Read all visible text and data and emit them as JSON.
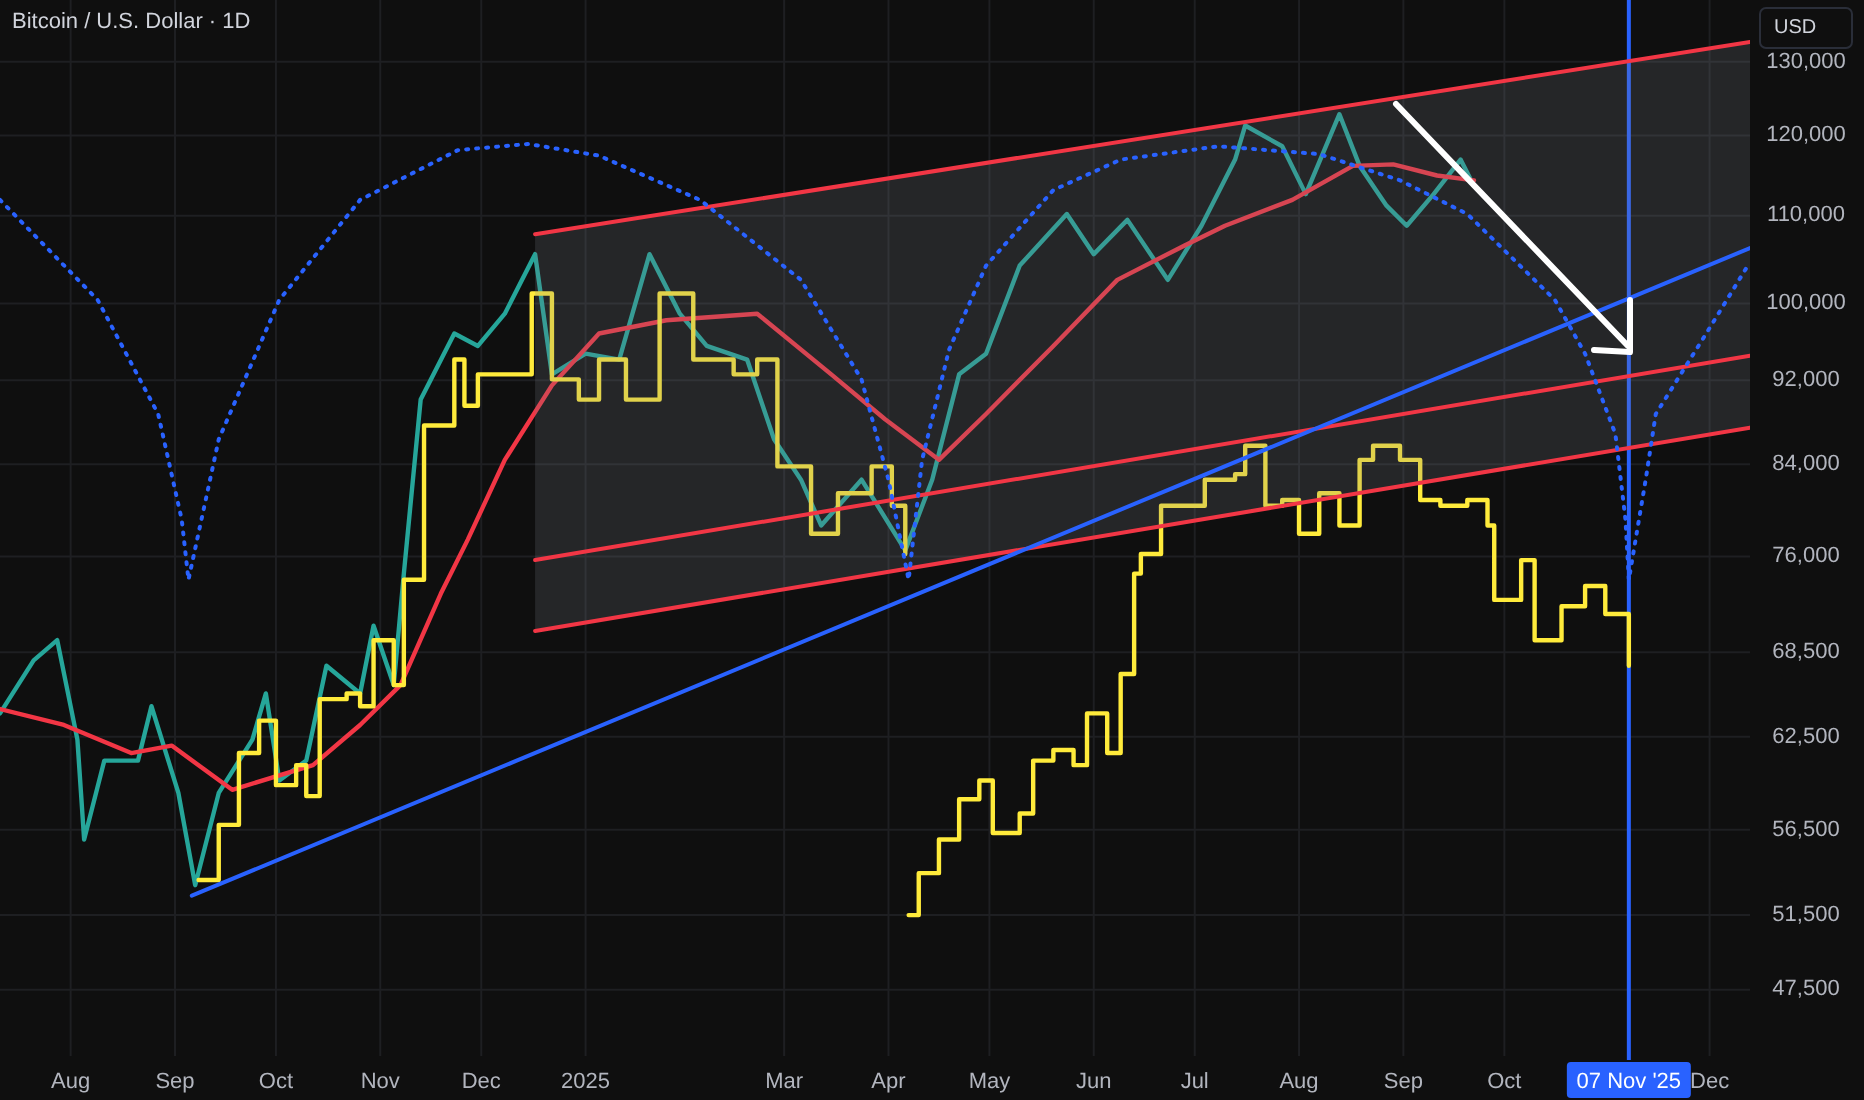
{
  "chart_data": {
    "type": "line",
    "title": "Bitcoin / U.S. Dollar · 1D",
    "ylabel": "USD",
    "log": true,
    "grid": true,
    "xlim": [
      "2024-07-11",
      "2025-12-13"
    ],
    "xticks": [
      {
        "value": "2024-08-01",
        "label": "Aug"
      },
      {
        "value": "2024-09-01",
        "label": "Sep"
      },
      {
        "value": "2024-10-01",
        "label": "Oct"
      },
      {
        "value": "2024-11-01",
        "label": "Nov"
      },
      {
        "value": "2024-12-01",
        "label": "Dec"
      },
      {
        "value": "2025-01-01",
        "label": "2025"
      },
      {
        "value": "2025-03-01",
        "label": "Mar"
      },
      {
        "value": "2025-04-01",
        "label": "Apr"
      },
      {
        "value": "2025-05-01",
        "label": "May"
      },
      {
        "value": "2025-06-01",
        "label": "Jun"
      },
      {
        "value": "2025-07-01",
        "label": "Jul"
      },
      {
        "value": "2025-08-01",
        "label": "Aug"
      },
      {
        "value": "2025-09-01",
        "label": "Sep"
      },
      {
        "value": "2025-10-01",
        "label": "Oct"
      },
      {
        "value": "2025-12-01",
        "label": "Dec"
      }
    ],
    "ylim": [
      44200,
      139000
    ],
    "yticks": [
      {
        "value": 47500,
        "label": "47,500"
      },
      {
        "value": 51500,
        "label": "51,500"
      },
      {
        "value": 56500,
        "label": "56,500"
      },
      {
        "value": 62500,
        "label": "62,500"
      },
      {
        "value": 68500,
        "label": "68,500"
      },
      {
        "value": 76000,
        "label": "76,000"
      },
      {
        "value": 84000,
        "label": "84,000"
      },
      {
        "value": 92000,
        "label": "92,000"
      },
      {
        "value": 100000,
        "label": "100,000"
      },
      {
        "value": 110000,
        "label": "110,000"
      },
      {
        "value": 120000,
        "label": "120,000"
      },
      {
        "value": 130000,
        "label": "130,000"
      }
    ],
    "ref_lines": [
      {
        "axis": "x",
        "value": "2025-11-07",
        "label": "07 Nov '25",
        "color": "#2962ff"
      }
    ],
    "series": [
      {
        "color": "#26a69a",
        "x": [
          "2024-07-11",
          "2024-07-21",
          "2024-07-28",
          "2024-08-03",
          "2024-08-05",
          "2024-08-11",
          "2024-08-21",
          "2024-08-25",
          "2024-09-02",
          "2024-09-07",
          "2024-09-14",
          "2024-09-24",
          "2024-09-28",
          "2024-10-02",
          "2024-10-10",
          "2024-10-16",
          "2024-10-26",
          "2024-10-30",
          "2024-11-05",
          "2024-11-08",
          "2024-11-13",
          "2024-11-23",
          "2024-11-30",
          "2024-12-08",
          "2024-12-17",
          "2024-12-22",
          "2025-01-01",
          "2025-01-11",
          "2025-01-20",
          "2025-01-29",
          "2025-02-06",
          "2025-02-18",
          "2025-02-26",
          "2025-03-06",
          "2025-03-12",
          "2025-03-24",
          "2025-04-06",
          "2025-04-14",
          "2025-04-22",
          "2025-04-30",
          "2025-05-10",
          "2025-05-24",
          "2025-06-01",
          "2025-06-11",
          "2025-06-23",
          "2025-07-03",
          "2025-07-13",
          "2025-07-16",
          "2025-07-27",
          "2025-08-03",
          "2025-08-13",
          "2025-08-19",
          "2025-08-27",
          "2025-09-02",
          "2025-09-10",
          "2025-09-18",
          "2025-09-22"
        ],
        "values": [
          64100,
          67900,
          69400,
          62300,
          55900,
          60900,
          60900,
          64600,
          58800,
          53200,
          58800,
          62300,
          65500,
          59600,
          60900,
          67500,
          65500,
          70500,
          66100,
          74600,
          90100,
          96800,
          95500,
          98900,
          105500,
          92600,
          94700,
          94100,
          105500,
          98900,
          95500,
          94100,
          86300,
          82600,
          78600,
          82600,
          76500,
          82600,
          92600,
          94700,
          104200,
          110200,
          105500,
          109500,
          102600,
          108800,
          116900,
          121300,
          118600,
          112600,
          122800,
          116100,
          111200,
          108800,
          112600,
          116900,
          113600
        ]
      },
      {
        "type": "line",
        "color": "#f23645",
        "x": [
          "2024-07-11",
          "2024-07-30",
          "2024-08-19",
          "2024-08-31",
          "2024-09-18",
          "2024-10-12",
          "2024-10-26",
          "2024-11-07",
          "2024-11-19",
          "2024-11-27",
          "2024-12-08",
          "2024-12-22",
          "2025-01-05",
          "2025-01-25",
          "2025-02-21",
          "2025-03-15",
          "2025-03-31",
          "2025-04-16",
          "2025-04-30",
          "2025-05-20",
          "2025-06-08",
          "2025-06-28",
          "2025-07-10",
          "2025-07-30",
          "2025-08-17",
          "2025-08-29",
          "2025-09-11",
          "2025-09-22"
        ],
        "values": [
          64400,
          63300,
          61400,
          61900,
          59000,
          60600,
          63300,
          66100,
          73000,
          77400,
          84400,
          91500,
          96800,
          98200,
          98900,
          92600,
          88200,
          84400,
          88700,
          95500,
          102600,
          106500,
          108800,
          111900,
          116100,
          116300,
          114900,
          114300
        ]
      },
      {
        "type": "step",
        "color": "#ffeb3b",
        "x": [
          "2024-09-08",
          "2024-09-14",
          "2024-09-20",
          "2024-09-26",
          "2024-10-01",
          "2024-10-07",
          "2024-10-10",
          "2024-10-14",
          "2024-10-22",
          "2024-10-26",
          "2024-10-30",
          "2024-11-05",
          "2024-11-08",
          "2024-11-14",
          "2024-11-23",
          "2024-11-26",
          "2024-11-30",
          "2024-12-10",
          "2024-12-16",
          "2024-12-22",
          "2024-12-30",
          "2025-01-05",
          "2025-01-13",
          "2025-01-23",
          "2025-02-02",
          "2025-02-14",
          "2025-02-21",
          "2025-02-27",
          "2025-03-09",
          "2025-03-17",
          "2025-03-27",
          "2025-04-02",
          "2025-04-06"
        ],
        "values": [
          53500,
          56800,
          61400,
          63600,
          59300,
          60600,
          58600,
          65100,
          65500,
          64600,
          69400,
          66100,
          74100,
          87600,
          94100,
          89500,
          92600,
          92600,
          101100,
          92100,
          90100,
          94100,
          90100,
          101100,
          94100,
          92600,
          94100,
          83800,
          77900,
          81400,
          83800,
          80300,
          76200
        ]
      },
      {
        "type": "step",
        "color": "#ffeb3b",
        "x": [
          "2025-04-07",
          "2025-04-10",
          "2025-04-16",
          "2025-04-22",
          "2025-04-28",
          "2025-05-02",
          "2025-05-10",
          "2025-05-14",
          "2025-05-20",
          "2025-05-26",
          "2025-05-30",
          "2025-06-05",
          "2025-06-09",
          "2025-06-13",
          "2025-06-15",
          "2025-06-21",
          "2025-06-28",
          "2025-07-04",
          "2025-07-13",
          "2025-07-16",
          "2025-07-22",
          "2025-07-27",
          "2025-08-01",
          "2025-08-07",
          "2025-08-13",
          "2025-08-19",
          "2025-08-23",
          "2025-08-31",
          "2025-09-06",
          "2025-09-12",
          "2025-09-20",
          "2025-09-26",
          "2025-09-28",
          "2025-10-06",
          "2025-10-10",
          "2025-10-18",
          "2025-10-25",
          "2025-10-31",
          "2025-11-04",
          "2025-11-07"
        ],
        "values": [
          51500,
          53900,
          55900,
          58400,
          59600,
          56300,
          57500,
          60900,
          61600,
          60600,
          64100,
          61400,
          66900,
          74600,
          76200,
          80300,
          80300,
          82600,
          83100,
          85700,
          80300,
          80800,
          77900,
          81400,
          78600,
          84400,
          85700,
          84400,
          80800,
          80300,
          80800,
          78600,
          72500,
          75700,
          69400,
          72000,
          73600,
          71400,
          71400,
          67500
        ]
      },
      {
        "type": "line",
        "color": "#f23645",
        "x": [
          "2024-12-17",
          "2025-12-13"
        ],
        "values": [
          75700,
          94500
        ],
        "lower": [
          70100,
          87400
        ],
        "upper": [
          107800,
          132800
        ]
      },
      {
        "type": "line",
        "color": "#f23645",
        "x": [
          "2024-12-17",
          "2025-12-13"
        ],
        "values": [
          107800,
          132800
        ]
      },
      {
        "type": "line",
        "color": "#f23645",
        "x": [
          "2024-12-17",
          "2025-12-13"
        ],
        "values": [
          70100,
          87400
        ]
      },
      {
        "type": "line",
        "color": "#2962ff",
        "x": [
          "2024-09-06",
          "2025-12-13"
        ],
        "values": [
          52600,
          106200
        ]
      },
      {
        "type": "line",
        "color": "#2962ff",
        "line_style": "dotted",
        "x": [
          "2024-07-11",
          "2024-08-09",
          "2024-08-27",
          "2024-09-03",
          "2024-09-05",
          "2024-09-14",
          "2024-10-02",
          "2024-10-26",
          "2024-11-24",
          "2024-12-15",
          "2025-01-05",
          "2025-02-04",
          "2025-03-06",
          "2025-03-24",
          "2025-04-01",
          "2025-04-07",
          "2025-04-11",
          "2025-04-19",
          "2025-04-30",
          "2025-05-20",
          "2025-06-09",
          "2025-07-08",
          "2025-08-07",
          "2025-08-31",
          "2025-09-20",
          "2025-10-16",
          "2025-10-25",
          "2025-11-03",
          "2025-11-06",
          "2025-11-07",
          "2025-11-12",
          "2025-11-15",
          "2025-11-30",
          "2025-12-13"
        ],
        "values": [
          111900,
          100400,
          88700,
          79100,
          74100,
          86300,
          100400,
          111900,
          118100,
          118900,
          117400,
          111900,
          102600,
          92100,
          82600,
          74100,
          84400,
          95100,
          104200,
          113100,
          116900,
          118600,
          117600,
          114300,
          110200,
          100400,
          94700,
          86800,
          79100,
          74100,
          82600,
          88700,
          96800,
          104600
        ]
      }
    ]
  }
}
